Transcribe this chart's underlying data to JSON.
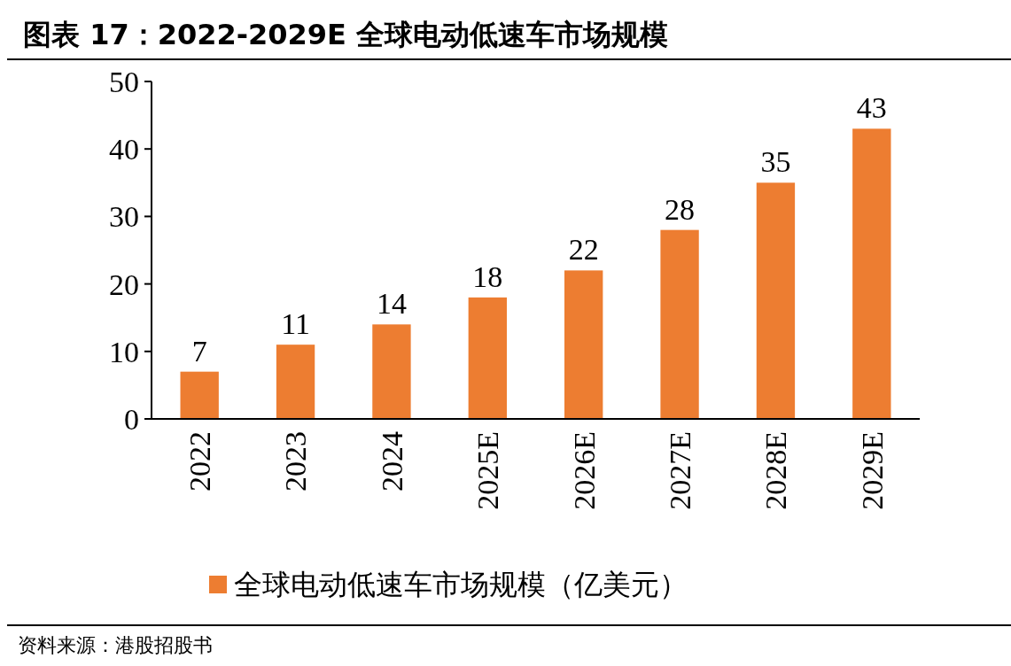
{
  "chart_data": {
    "type": "bar",
    "title": "图表 17：2022-2029E 全球电动低速车市场规模",
    "categories": [
      "2022",
      "2023",
      "2024",
      "2025E",
      "2026E",
      "2027E",
      "2028E",
      "2029E"
    ],
    "series": [
      {
        "name": "全球电动低速车市场规模（亿美元）",
        "color": "#ed7d31",
        "values": [
          7,
          11,
          14,
          18,
          22,
          28,
          35,
          43
        ]
      }
    ],
    "ylim": [
      0,
      50
    ],
    "yticks": [
      0,
      10,
      20,
      30,
      40,
      50
    ],
    "grid": false,
    "legend": "bottom",
    "data_labels": true,
    "annotations": [
      "资料来源：港股招股书"
    ]
  }
}
